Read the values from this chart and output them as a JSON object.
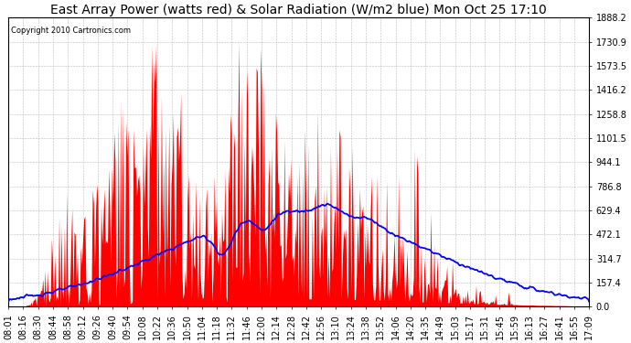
{
  "title": "East Array Power (watts red) & Solar Radiation (W/m2 blue) Mon Oct 25 17:10",
  "copyright_text": "Copyright 2010 Cartronics.com",
  "yticks": [
    0.0,
    157.4,
    314.7,
    472.1,
    629.4,
    786.8,
    944.1,
    1101.5,
    1258.8,
    1416.2,
    1573.5,
    1730.9,
    1888.2
  ],
  "ymax": 1888.2,
  "ymin": 0.0,
  "xtick_labels": [
    "08:01",
    "08:16",
    "08:30",
    "08:44",
    "08:58",
    "09:12",
    "09:26",
    "09:40",
    "09:54",
    "10:08",
    "10:22",
    "10:36",
    "10:50",
    "11:04",
    "11:18",
    "11:32",
    "11:46",
    "12:00",
    "12:14",
    "12:28",
    "12:42",
    "12:56",
    "13:10",
    "13:24",
    "13:38",
    "13:52",
    "14:06",
    "14:20",
    "14:35",
    "14:49",
    "15:03",
    "15:17",
    "15:31",
    "15:45",
    "15:59",
    "16:13",
    "16:27",
    "16:41",
    "16:55",
    "17:09"
  ],
  "plot_bg_color": "#FFFFFF",
  "fig_bg_color": "#FFFFFF",
  "grid_color": "#AAAAAA",
  "red_color": "#FF0000",
  "blue_color": "#0000FF",
  "title_fontsize": 10,
  "tick_fontsize": 7,
  "copyright_fontsize": 6
}
